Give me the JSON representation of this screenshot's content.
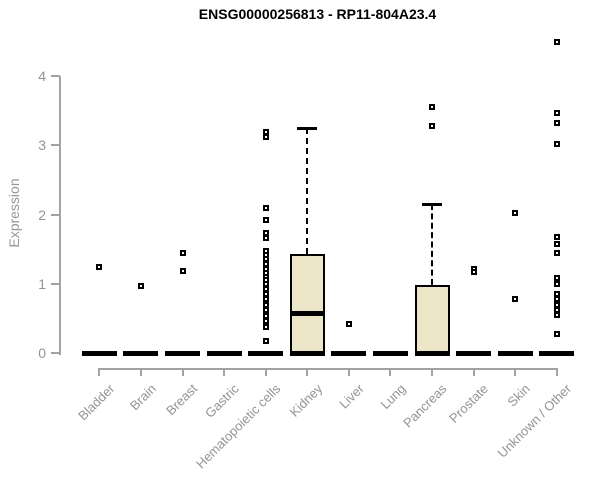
{
  "title": "ENSG00000256813 - RP11-804A23.4",
  "chart_data": {
    "type": "box",
    "title": "ENSG00000256813 - RP11-804A23.4",
    "ylabel": "Expression",
    "xlabel": "",
    "ylim": [
      0,
      4
    ],
    "yticks": [
      0,
      1,
      2,
      3,
      4
    ],
    "grid": false,
    "legend": "none",
    "categories": [
      "Bladder",
      "Brain",
      "Breast",
      "Gastric",
      "Hematopoietic cells",
      "Kidney",
      "Liver",
      "Lung",
      "Pancreas",
      "Prostate",
      "Skin",
      "Unknown / Other"
    ],
    "boxes": [
      {
        "category": "Bladder",
        "min": 0,
        "q1": 0,
        "median": 0,
        "q3": 0,
        "max": 0,
        "outliers": [
          1.25
        ]
      },
      {
        "category": "Brain",
        "min": 0,
        "q1": 0,
        "median": 0,
        "q3": 0,
        "max": 0,
        "outliers": [
          0.97
        ]
      },
      {
        "category": "Breast",
        "min": 0,
        "q1": 0,
        "median": 0,
        "q3": 0,
        "max": 0,
        "outliers": [
          1.45,
          1.18
        ]
      },
      {
        "category": "Gastric",
        "min": 0,
        "q1": 0,
        "median": 0,
        "q3": 0,
        "max": 0,
        "outliers": []
      },
      {
        "category": "Hematopoietic cells",
        "min": 0,
        "q1": 0,
        "median": 0,
        "q3": 0,
        "max": 0,
        "outliers": [
          3.2,
          3.12,
          2.1,
          1.92,
          1.74,
          1.66,
          1.48,
          1.42,
          1.36,
          1.28,
          1.22,
          1.16,
          1.1,
          1.05,
          1.0,
          0.92,
          0.85,
          0.78,
          0.7,
          0.62,
          0.54,
          0.46,
          0.38,
          0.17
        ]
      },
      {
        "category": "Kidney",
        "min": 0,
        "q1": 0,
        "median": 0.58,
        "q3": 1.43,
        "max": 3.25,
        "outliers": []
      },
      {
        "category": "Liver",
        "min": 0,
        "q1": 0,
        "median": 0,
        "q3": 0,
        "max": 0,
        "outliers": [
          0.42
        ]
      },
      {
        "category": "Lung",
        "min": 0,
        "q1": 0,
        "median": 0,
        "q3": 0,
        "max": 0,
        "outliers": []
      },
      {
        "category": "Pancreas",
        "min": 0,
        "q1": 0,
        "median": 0,
        "q3": 0.98,
        "max": 2.15,
        "outliers": [
          3.55,
          3.28
        ]
      },
      {
        "category": "Prostate",
        "min": 0,
        "q1": 0,
        "median": 0,
        "q3": 0,
        "max": 0,
        "outliers": [
          1.21,
          1.17
        ]
      },
      {
        "category": "Skin",
        "min": 0,
        "q1": 0,
        "median": 0,
        "q3": 0,
        "max": 0,
        "outliers": [
          2.03,
          0.78
        ]
      },
      {
        "category": "Unknown / Other",
        "min": 0,
        "q1": 0,
        "median": 0,
        "q3": 0,
        "max": 0,
        "outliers": [
          4.49,
          3.47,
          3.33,
          3.02,
          1.68,
          1.57,
          1.44,
          1.08,
          1.0,
          0.85,
          0.78,
          0.7,
          0.62,
          0.55,
          0.27
        ]
      }
    ],
    "colors": {
      "box_fill": "#ece5c7",
      "box_border": "#000000",
      "marks": "#000000",
      "axis": "#a3a3a3",
      "tick_text": "#949494",
      "title_text": "#000000"
    }
  }
}
